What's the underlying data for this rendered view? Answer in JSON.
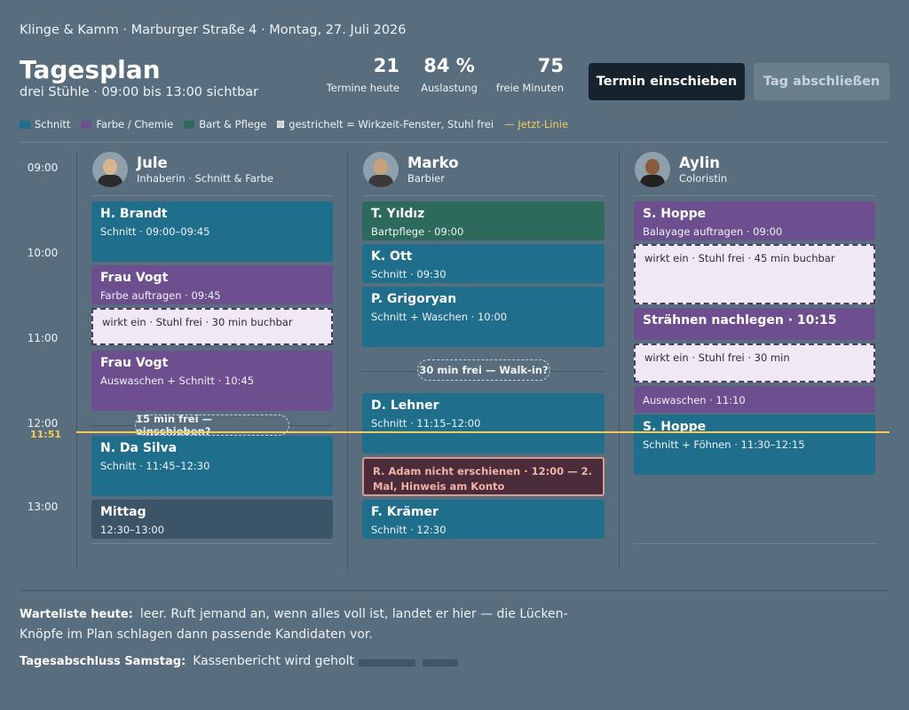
{
  "header": {
    "topline": "Klinge & Kamm · Marburger Straße 4 · Montag, 27. Juli 2026",
    "title": "Tagesplan",
    "subtitle": "drei Stühle · 09:00 bis 13:00 sichtbar"
  },
  "stats": [
    {
      "value": "21",
      "label": "Termine heute"
    },
    {
      "value": "84 %",
      "label": "Auslastung"
    },
    {
      "value": "75",
      "label": "freie Minuten"
    }
  ],
  "actions": {
    "primary": "Termin einschieben",
    "secondary": "Tag abschließen"
  },
  "legend": {
    "cut": "Schnitt",
    "color": "Farbe / Chemie",
    "beard": "Bart & Pflege",
    "hatch": "gestrichelt = Wirkzeit-Fenster, Stuhl frei",
    "now": "— Jetzt-Linie"
  },
  "colors": {
    "cut": "#1e6e8c",
    "color": "#6d4f90",
    "beard": "#2d6a5c",
    "now": "#f2cc5a"
  },
  "timeline": {
    "hours": [
      "09:00",
      "10:00",
      "11:00",
      "12:00",
      "13:00"
    ],
    "now": "11:51"
  },
  "staff": [
    {
      "name": "Jule",
      "role": "Inhaberin · Schnitt & Farbe"
    },
    {
      "name": "Marko",
      "role": "Barbier"
    },
    {
      "name": "Aylin",
      "role": "Coloristin"
    }
  ],
  "jule": {
    "brandt": {
      "name": "H. Brandt",
      "info": "Schnitt · 09:00–09:45"
    },
    "vogt1": {
      "name": "Frau Vogt",
      "info": "Farbe auftragen · 09:45"
    },
    "wait": "wirkt ein · Stuhl frei · 30 min buchbar",
    "vogt2": {
      "name": "Frau Vogt",
      "info": "Auswaschen + Schnitt · 10:45"
    },
    "gap": "15 min frei — einschieben?",
    "dasilva": {
      "name": "N. Da Silva",
      "info": "Schnitt · 11:45–12:30"
    },
    "lunch": {
      "name": "Mittag",
      "info": "12:30–13:00"
    }
  },
  "marko": {
    "yildiz": {
      "name": "T. Yıldız",
      "info": "Bartpflege · 09:00"
    },
    "ott": {
      "name": "K. Ott",
      "info": "Schnitt · 09:30"
    },
    "grigoryan": {
      "name": "P. Grigoryan",
      "info": "Schnitt + Waschen · 10:00"
    },
    "gap": "30 min frei — Walk-in?",
    "lehner": {
      "name": "D. Lehner",
      "info": "Schnitt · 11:15–12:00"
    },
    "noshow": "R. Adam nicht erschienen · 12:00 — 2. Mal, Hinweis am Konto",
    "kraemer": {
      "name": "F. Krämer",
      "info": "Schnitt · 12:30"
    }
  },
  "aylin": {
    "hoppe1": {
      "name": "S. Hoppe",
      "info": "Balayage auftragen · 09:00"
    },
    "wait1": "wirkt ein · Stuhl frei · 45 min buchbar",
    "straehnen": {
      "name": "Strähnen nachlegen · 10:15"
    },
    "wait2": "wirkt ein · Stuhl frei · 30 min",
    "wash": "Auswaschen · 11:10",
    "hoppe2": {
      "name": "S. Hoppe",
      "info": "Schnitt + Föhnen · 11:30–12:15"
    }
  },
  "footer": {
    "waitlist_label": "Warteliste heute:",
    "waitlist_text": "leer. Ruft jemand an, wenn alles voll ist, landet er hier — die Lücken-Knöpfe im Plan schlagen dann passende Kandidaten vor.",
    "closing_label": "Tagesabschluss Samstag:",
    "closing_text": "Kassenbericht wird geholt"
  }
}
